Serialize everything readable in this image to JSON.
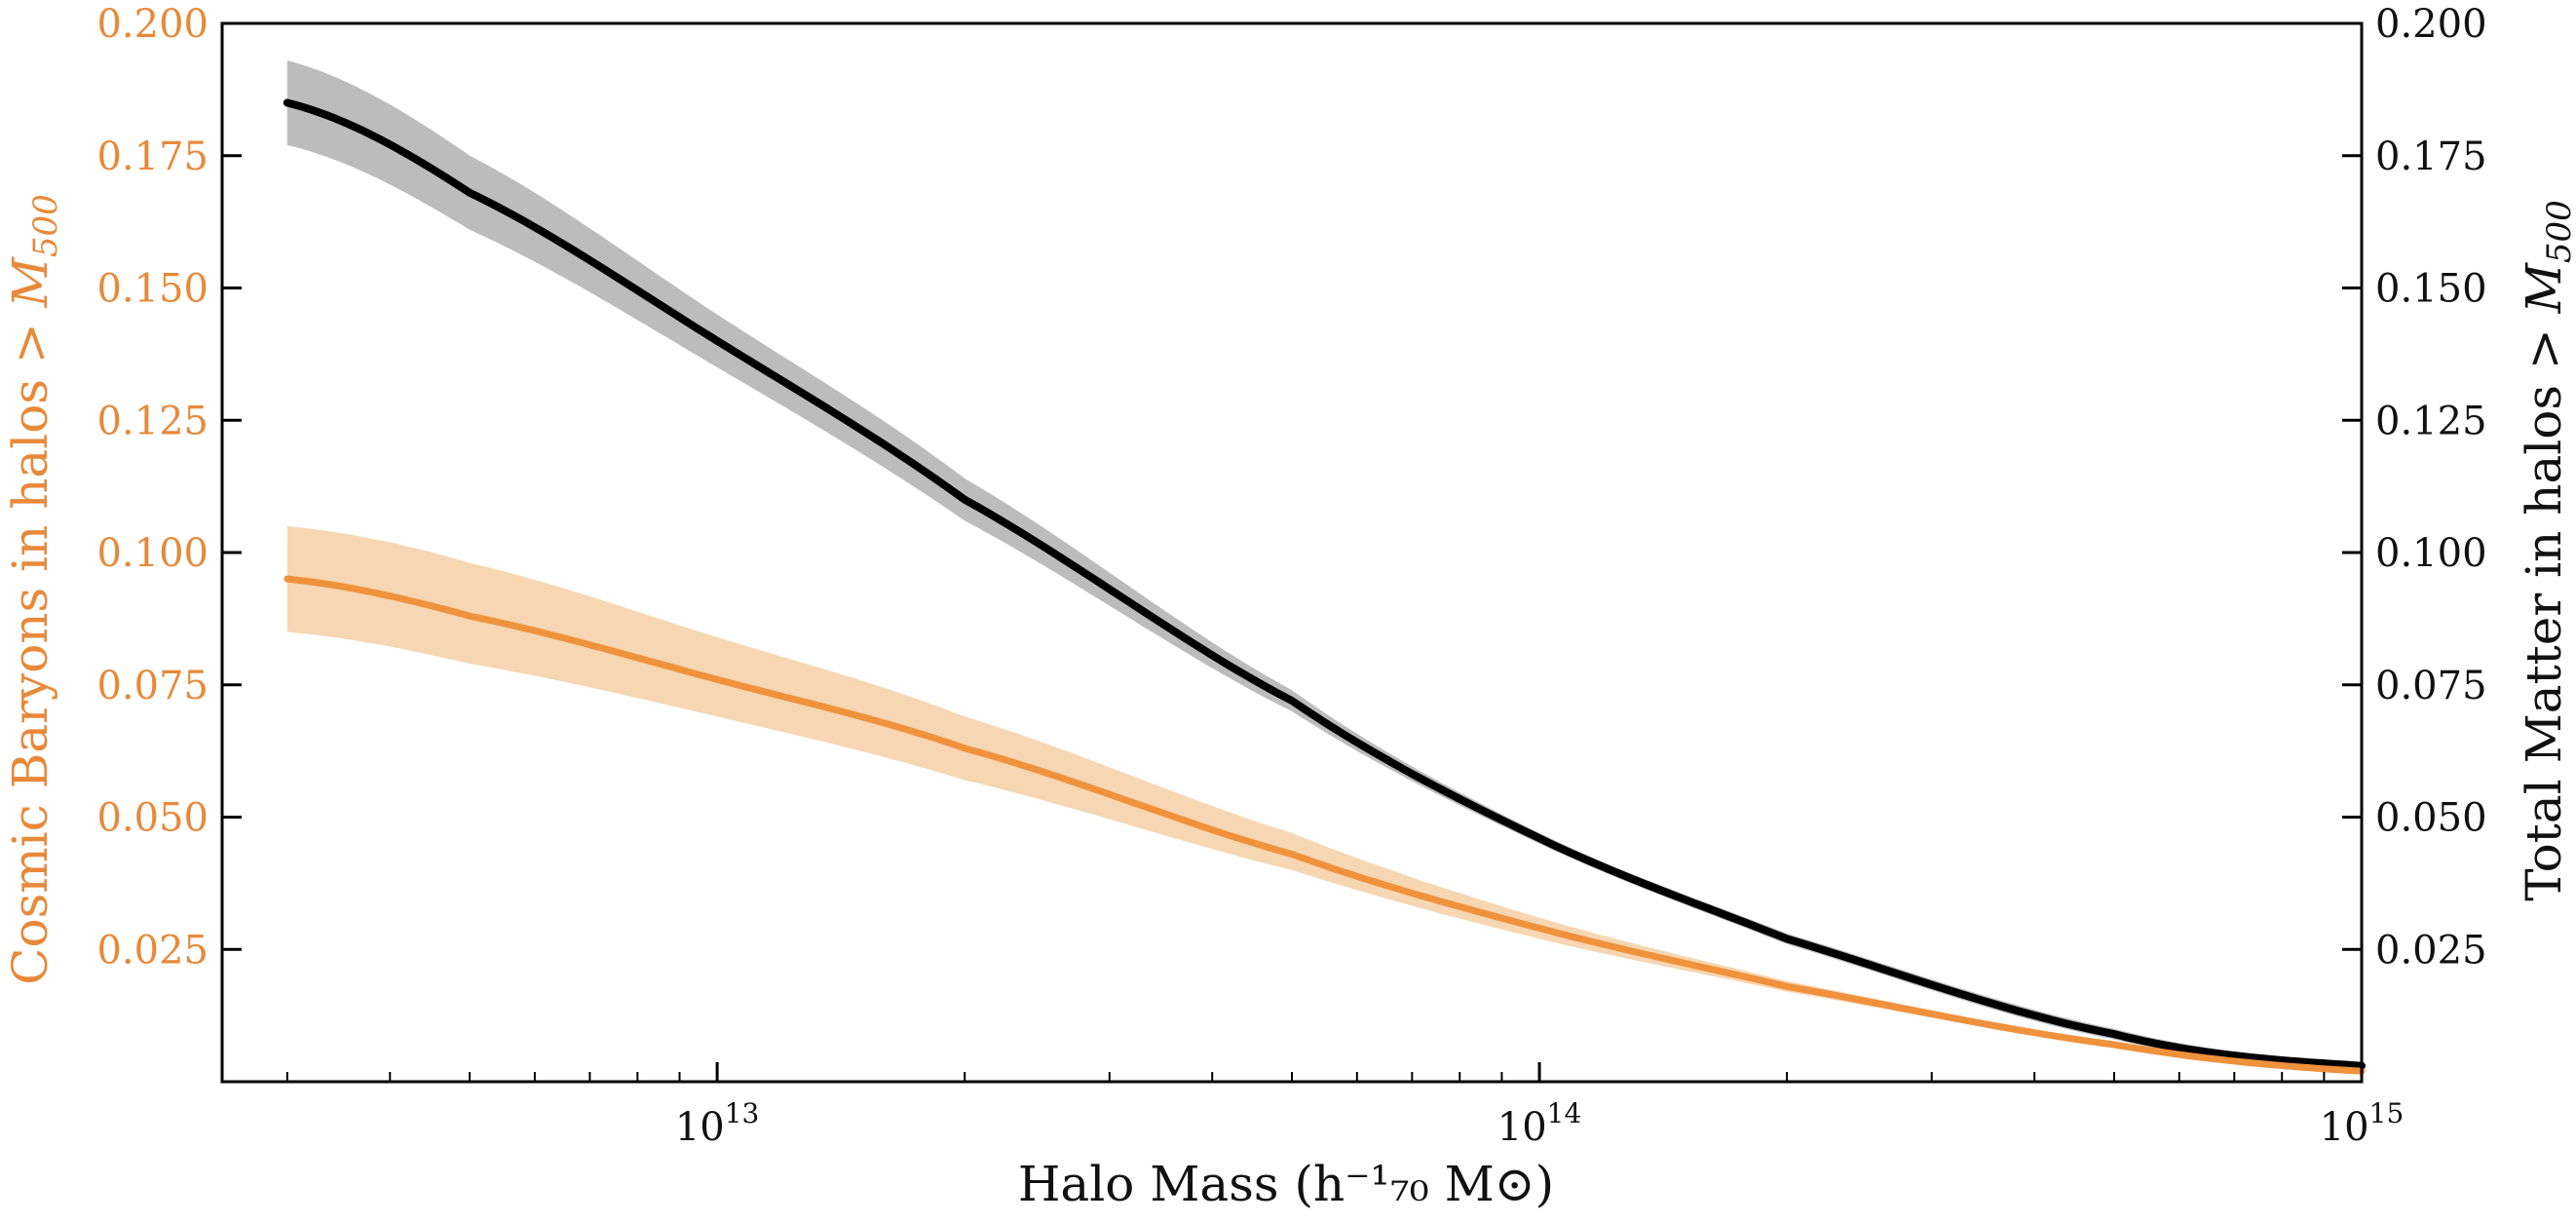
{
  "chart_data": {
    "type": "line",
    "title": "",
    "x_scale": "log",
    "xlim": [
      2500000000000.0,
      1000000000000000.0
    ],
    "xlabel": "Halo Mass",
    "xlabel_unit": "(h⁻¹₇₀ M⊙)",
    "x_ticks": [
      {
        "value": 10000000000000.0,
        "base": "10",
        "exp": "13"
      },
      {
        "value": 100000000000000.0,
        "base": "10",
        "exp": "14"
      },
      {
        "value": 1000000000000000.0,
        "base": "10",
        "exp": "15"
      }
    ],
    "left_axis": {
      "label": "Cosmic Baryons in halos > ",
      "label_var": "M",
      "label_sub": "500",
      "color": "#e8893a",
      "ylim": [
        0,
        0.2
      ],
      "ticks": [
        "0.025",
        "0.050",
        "0.075",
        "0.100",
        "0.125",
        "0.150",
        "0.175",
        "0.200"
      ]
    },
    "right_axis": {
      "label": "Total Matter in halos > ",
      "label_var": "M",
      "label_sub": "500",
      "color": "#111111",
      "ylim": [
        0,
        0.2
      ],
      "ticks": [
        "0.025",
        "0.050",
        "0.075",
        "0.100",
        "0.125",
        "0.150",
        "0.175",
        "0.200"
      ]
    },
    "series": [
      {
        "name": "Total Matter",
        "axis": "right",
        "color": "#000000",
        "band_color": "#b0b0b0",
        "x": [
          3000000000000.0,
          5000000000000.0,
          10000000000000.0,
          20000000000000.0,
          50000000000000.0,
          100000000000000.0,
          200000000000000.0,
          500000000000000.0,
          1000000000000000.0
        ],
        "y": [
          0.185,
          0.168,
          0.14,
          0.11,
          0.072,
          0.046,
          0.027,
          0.009,
          0.003
        ],
        "y_lo": [
          0.177,
          0.161,
          0.135,
          0.106,
          0.07,
          0.045,
          0.026,
          0.008,
          0.0025
        ],
        "y_hi": [
          0.193,
          0.175,
          0.145,
          0.114,
          0.074,
          0.047,
          0.028,
          0.01,
          0.0035
        ]
      },
      {
        "name": "Cosmic Baryons",
        "axis": "left",
        "color": "#f0913c",
        "band_color": "#f5cfa6",
        "x": [
          3000000000000.0,
          5000000000000.0,
          10000000000000.0,
          20000000000000.0,
          50000000000000.0,
          100000000000000.0,
          200000000000000.0,
          500000000000000.0,
          1000000000000000.0
        ],
        "y": [
          0.095,
          0.088,
          0.076,
          0.063,
          0.043,
          0.029,
          0.018,
          0.007,
          0.002
        ],
        "y_lo": [
          0.085,
          0.079,
          0.069,
          0.057,
          0.04,
          0.027,
          0.017,
          0.0065,
          0.0015
        ],
        "y_hi": [
          0.105,
          0.098,
          0.084,
          0.069,
          0.047,
          0.031,
          0.019,
          0.0075,
          0.0025
        ]
      }
    ]
  }
}
